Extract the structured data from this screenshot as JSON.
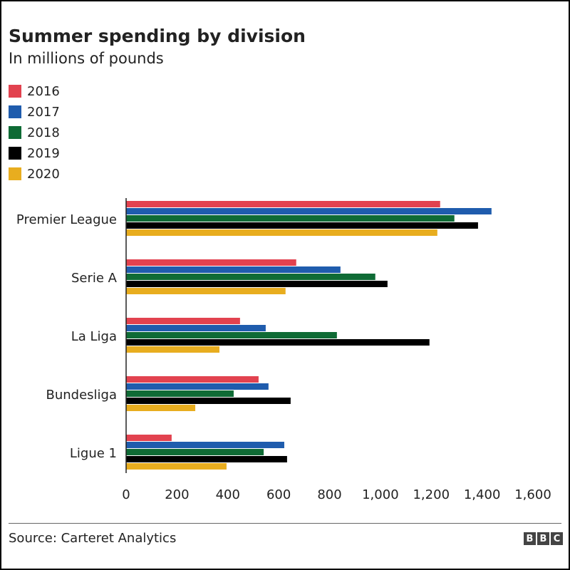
{
  "chart_data": {
    "type": "bar",
    "orientation": "horizontal",
    "title": "Summer spending by division",
    "subtitle": "In millions of pounds",
    "categories": [
      "Premier League",
      "Serie A",
      "La Liga",
      "Bundesliga",
      "Ligue 1"
    ],
    "series": [
      {
        "name": "2016",
        "color": "#e2424f",
        "values": [
          1235,
          669,
          448,
          521,
          179
        ]
      },
      {
        "name": "2017",
        "color": "#1f5cad",
        "values": [
          1437,
          843,
          549,
          560,
          622
        ]
      },
      {
        "name": "2018",
        "color": "#0f6b35",
        "values": [
          1291,
          980,
          829,
          423,
          541
        ]
      },
      {
        "name": "2019",
        "color": "#000000",
        "values": [
          1384,
          1028,
          1193,
          647,
          633
        ]
      },
      {
        "name": "2020",
        "color": "#e8ad1f",
        "values": [
          1224,
          627,
          367,
          272,
          395
        ]
      }
    ],
    "xlim": [
      0,
      1600
    ],
    "xticks": [
      "0",
      "200",
      "400",
      "600",
      "800",
      "1,000",
      "1,200",
      "1,400",
      "1,600"
    ],
    "xtick_values": [
      0,
      200,
      400,
      600,
      800,
      1000,
      1200,
      1400,
      1600
    ],
    "legend": "top-left",
    "grid": false
  },
  "footer": {
    "source": "Source: Carteret Analytics",
    "logo": [
      "B",
      "B",
      "C"
    ]
  }
}
